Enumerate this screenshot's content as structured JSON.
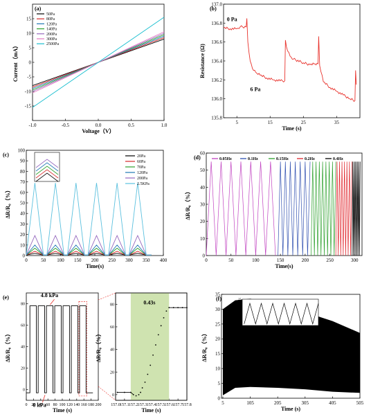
{
  "chart_data": [
    {
      "panel": "(a)",
      "type": "line",
      "xlabel": "Voltage（V）",
      "ylabel": "Current（mA）",
      "xlim": [
        -1.0,
        1.0
      ],
      "ylim": [
        -20,
        20
      ],
      "xticks": [
        "-1.0",
        "-0.5",
        "0.0",
        "0.5",
        "1.0"
      ],
      "yticks": [
        "-15",
        "-10",
        "-5",
        "0",
        "5",
        "10",
        "15"
      ],
      "legend_position": "top-left",
      "series": [
        {
          "name": "50Pa",
          "color": "#000000",
          "x": [
            -1,
            1
          ],
          "y": [
            -8,
            8
          ]
        },
        {
          "name": "80Pa",
          "color": "#d62728",
          "x": [
            -1,
            1
          ],
          "y": [
            -8.5,
            8.5
          ]
        },
        {
          "name": "120Pa",
          "color": "#1f77b4",
          "x": [
            -1,
            1
          ],
          "y": [
            -9,
            9
          ]
        },
        {
          "name": "140Pa",
          "color": "#2ca02c",
          "x": [
            -1,
            1
          ],
          "y": [
            -9.5,
            9.5
          ]
        },
        {
          "name": "200Pa",
          "color": "#9467bd",
          "x": [
            -1,
            1
          ],
          "y": [
            -10,
            10
          ]
        },
        {
          "name": "300Pa",
          "color": "#e377c2",
          "x": [
            -1,
            1
          ],
          "y": [
            -10.5,
            10.5
          ]
        },
        {
          "name": "2500Pa",
          "color": "#17becf",
          "x": [
            -1,
            1
          ],
          "y": [
            -15.5,
            15.5
          ]
        }
      ]
    },
    {
      "panel": "(b)",
      "type": "line",
      "xlabel": "Time (s)",
      "ylabel": "Resistance (Ω)",
      "xlim": [
        1,
        42
      ],
      "ylim": [
        135.8,
        137.0
      ],
      "xticks": [
        "5",
        "15",
        "25",
        "35"
      ],
      "yticks": [
        "135.8",
        "136.0",
        "136.2",
        "136.4",
        "136.6",
        "136.8",
        "137.0"
      ],
      "annotations": [
        "0 Pa",
        "6 Pa"
      ],
      "series": [
        {
          "color": "#e8312b",
          "x": [
            1,
            3,
            5,
            6,
            7.8,
            8,
            8.3,
            9,
            10,
            11,
            12,
            14,
            16,
            18,
            19.4,
            19.6,
            19.9,
            21,
            22,
            25,
            27,
            28.5,
            29.4,
            29.6,
            29.9,
            31,
            33,
            35,
            37,
            39,
            40.5,
            40.7,
            40.9
          ],
          "y": [
            136.75,
            136.74,
            136.74,
            136.76,
            136.76,
            136.85,
            136.6,
            136.4,
            136.3,
            136.27,
            136.25,
            136.22,
            136.2,
            136.19,
            136.19,
            136.62,
            136.55,
            136.45,
            136.42,
            136.38,
            136.36,
            136.37,
            136.37,
            136.66,
            136.35,
            136.18,
            136.12,
            136.08,
            136.04,
            136.0,
            135.98,
            136.3,
            136.15
          ]
        }
      ]
    },
    {
      "panel": "(c)",
      "type": "line",
      "xlabel": "Time(s)",
      "ylabel": "ΔR/R₀（%）",
      "xlim": [
        0,
        400
      ],
      "ylim": [
        0,
        100
      ],
      "xticks": [
        "0",
        "50",
        "100",
        "150",
        "200",
        "250",
        "300",
        "350",
        "400"
      ],
      "yticks": [
        "0",
        "10",
        "20",
        "30",
        "40",
        "50",
        "60",
        "70",
        "80",
        "90",
        "100"
      ],
      "period_s": 60,
      "first_peak_s": 25,
      "cycles": 6,
      "legend_position": "top-right",
      "series": [
        {
          "name": "20Pa",
          "color": "#000000",
          "peak": 2
        },
        {
          "name": "60Pa",
          "color": "#d62728",
          "peak": 4
        },
        {
          "name": "70Pa",
          "color": "#2ca02c",
          "peak": 7
        },
        {
          "name": "120Pa",
          "color": "#1f77b4",
          "peak": 10
        },
        {
          "name": "200Pa",
          "color": "#9467bd",
          "peak": 19
        },
        {
          "name": "2.5KPa",
          "color": "#5bc0de",
          "peak": 69
        }
      ]
    },
    {
      "panel": "(d)",
      "type": "line",
      "xlabel": "Time(s)",
      "ylabel": "ΔR/R₀（%）",
      "xlim": [
        0,
        315
      ],
      "ylim": [
        0,
        60
      ],
      "xticks": [
        "0",
        "50",
        "100",
        "150",
        "200",
        "250",
        "300"
      ],
      "yticks": [
        "0",
        "10",
        "20",
        "30",
        "40",
        "50",
        "60"
      ],
      "legend_position": "top",
      "series": [
        {
          "name": "0.05Hz",
          "color": "#c040c0",
          "t_start": 0,
          "t_end": 145,
          "freq": 0.05,
          "peak": 55
        },
        {
          "name": "0.1Hz",
          "color": "#3050b0",
          "t_start": 145,
          "t_end": 212,
          "freq": 0.1,
          "peak": 55
        },
        {
          "name": "0.15Hz",
          "color": "#2ca02c",
          "t_start": 212,
          "t_end": 262,
          "freq": 0.15,
          "peak": 55
        },
        {
          "name": "0.2Hz",
          "color": "#e0242b",
          "t_start": 262,
          "t_end": 295,
          "freq": 0.2,
          "peak": 55
        },
        {
          "name": "0.4Hz",
          "color": "#000000",
          "t_start": 295,
          "t_end": 312,
          "freq": 0.4,
          "peak": 55
        }
      ]
    },
    {
      "panel": "(e)",
      "type": "line",
      "xlabel": "Time (s)",
      "ylabel": "ΔR/R₀（%）",
      "xlim": [
        0,
        200
      ],
      "ylim": [
        -10,
        90
      ],
      "xticks": [
        "0",
        "20",
        "40",
        "60",
        "80",
        "100",
        "120",
        "140",
        "160",
        "180",
        "200"
      ],
      "yticks": [
        "0",
        "20",
        "40",
        "60",
        "80"
      ],
      "annotations": [
        "4.8 kPa",
        "0 kPa"
      ],
      "pulses": [
        {
          "on": 10,
          "off": 28
        },
        {
          "on": 33,
          "off": 51
        },
        {
          "on": 56,
          "off": 74
        },
        {
          "on": 79,
          "off": 97
        },
        {
          "on": 102,
          "off": 120
        },
        {
          "on": 125,
          "off": 143
        },
        {
          "on": 148,
          "off": 166
        }
      ],
      "high": 78,
      "low": -3,
      "color": "#000000"
    },
    {
      "panel": "(e) inset",
      "type": "scatter",
      "xlabel": "Time (s)",
      "ylabel": "ΔR/R₀（%）",
      "xlim": [
        157.0,
        157.8
      ],
      "ylim": [
        -5,
        90
      ],
      "xticks": [
        "157.0",
        "157.1",
        "157.2",
        "157.3",
        "157.4",
        "157.5",
        "157.6",
        "157.7",
        "157.8"
      ],
      "yticks": [
        "0",
        "20",
        "40",
        "60",
        "80"
      ],
      "annotations": [
        "0.43s"
      ],
      "highlight_range": [
        157.17,
        157.6
      ],
      "x": [
        157.02,
        157.1,
        157.17,
        157.2,
        157.23,
        157.26,
        157.28,
        157.3,
        157.33,
        157.36,
        157.39,
        157.42,
        157.45,
        157.48,
        157.51,
        157.54,
        157.57,
        157.6,
        157.65,
        157.7,
        157.75,
        157.8
      ],
      "y": [
        2,
        2,
        2,
        0,
        -1,
        0,
        2,
        6,
        11,
        18,
        26,
        35,
        44,
        53,
        61,
        68,
        74,
        77,
        77,
        77,
        77,
        77
      ],
      "color": "#000000"
    },
    {
      "panel": "(f)",
      "type": "area",
      "xlabel": "Time (s)",
      "ylabel": "ΔR/R₀（%）",
      "xlim": [
        0,
        505
      ],
      "ylim": [
        0,
        35
      ],
      "xticks": [
        "5",
        "105",
        "205",
        "305",
        "405",
        "505"
      ],
      "yticks": [
        "0",
        "5",
        "10",
        "15",
        "20",
        "25",
        "30",
        "35"
      ],
      "envelope_x": [
        5,
        50,
        105,
        205,
        305,
        405,
        505
      ],
      "upper": [
        30,
        33,
        33.5,
        31,
        29,
        26,
        22
      ],
      "lower": [
        1,
        3.5,
        3.8,
        3.5,
        3,
        2.2,
        1.8
      ],
      "color": "#000000"
    },
    {
      "panel": "(f) inset",
      "type": "line",
      "xlabel": "Time(s)",
      "ylabel": "ΔR/R₀（%）",
      "xlim": [
        473,
        483
      ],
      "ylim": [
        0,
        25
      ],
      "xticks": [
        "476",
        "478",
        "480",
        "482"
      ],
      "yticks": [
        "0",
        "5",
        "10",
        "15",
        "20",
        "25"
      ],
      "peaks_at": [
        474.0,
        475.5,
        477.0,
        478.5,
        480.0,
        481.5,
        483.0
      ],
      "peak": 21,
      "color": "#000000"
    }
  ]
}
